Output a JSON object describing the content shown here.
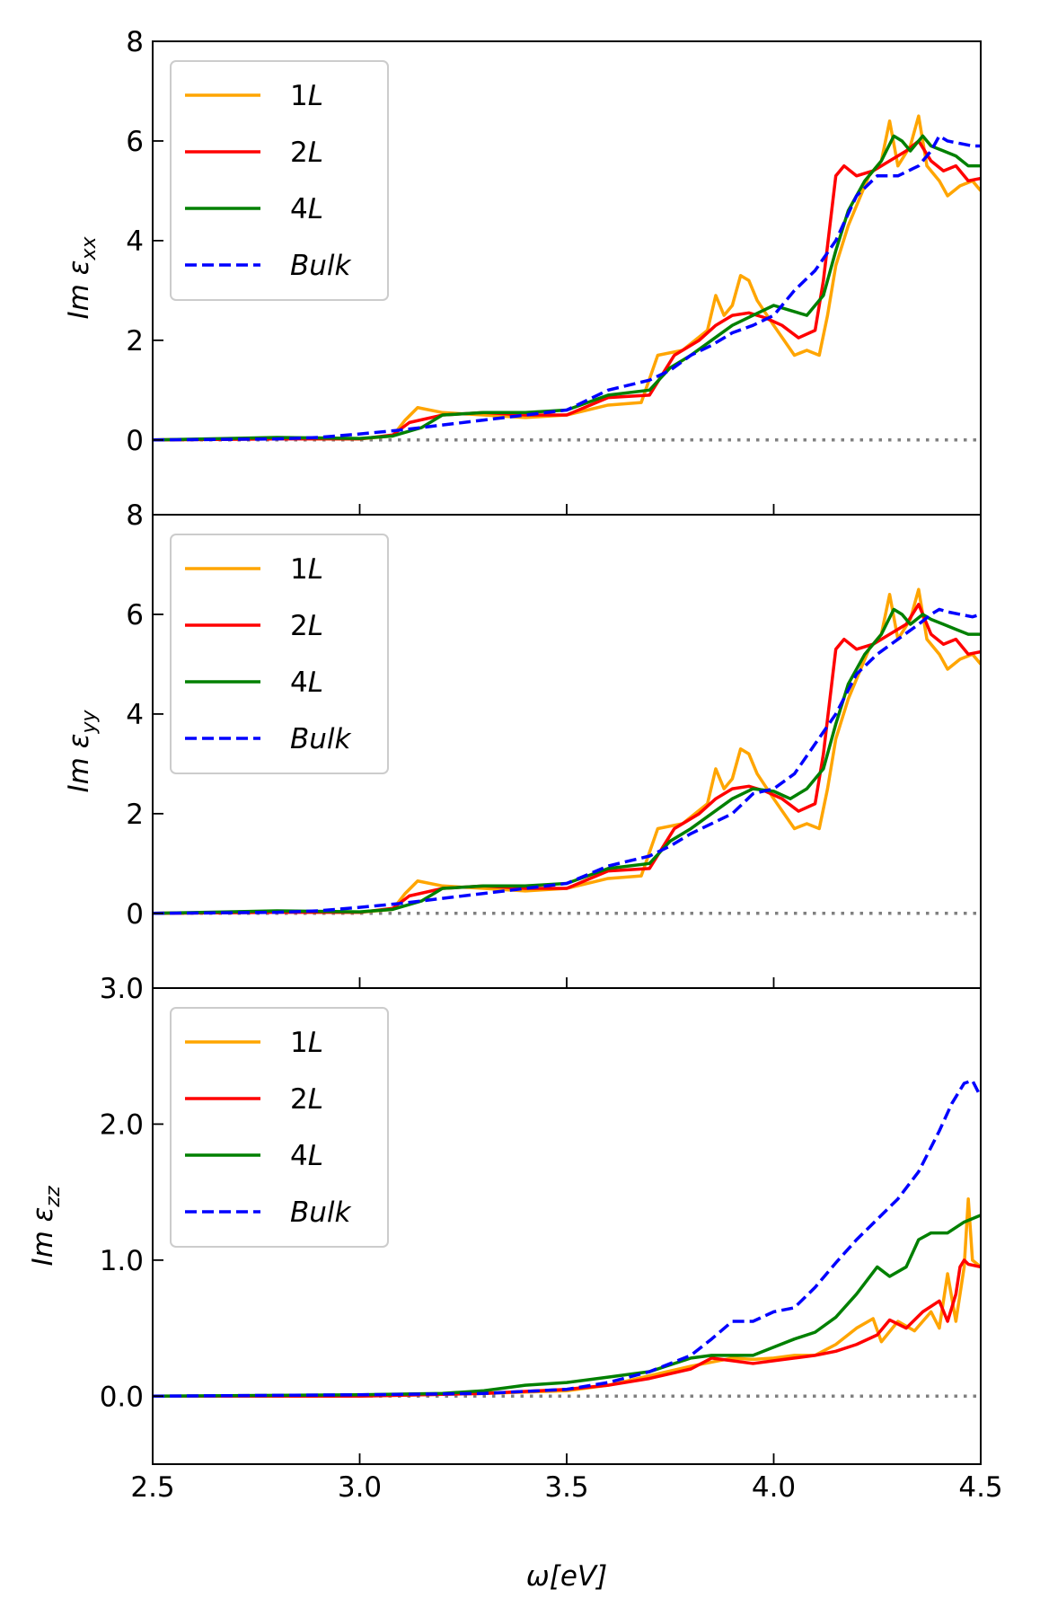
{
  "figure": {
    "xlabel": "ω[eV]"
  },
  "chart_data": [
    {
      "type": "line",
      "ylabel": "Im ε_xx",
      "ylabel_main": "Im ε",
      "ylabel_sub": "xx",
      "xlim": [
        2.5,
        4.5
      ],
      "ylim": [
        -1.5,
        8
      ],
      "yticks": [
        0,
        2,
        4,
        6,
        8
      ],
      "ytick_labels": [
        "0",
        "2",
        "4",
        "6",
        "8"
      ],
      "xticks": [
        3.0,
        3.5,
        4.0,
        4.5
      ],
      "xtick_labels_shown": false,
      "zero_line": {
        "y": 0,
        "color": "#808080",
        "style": "dotted"
      },
      "legend": {
        "position": "top-left",
        "entries": [
          {
            "num": "1",
            "italic": "L"
          },
          {
            "num": "2",
            "italic": "L"
          },
          {
            "num": "4",
            "italic": "L"
          },
          {
            "num": "",
            "italic": "Bulk"
          }
        ]
      },
      "series": [
        {
          "name": "1L",
          "color": "#FFA500",
          "dash": "solid",
          "x": [
            2.5,
            2.8,
            3.0,
            3.08,
            3.11,
            3.14,
            3.2,
            3.3,
            3.4,
            3.5,
            3.6,
            3.68,
            3.72,
            3.78,
            3.84,
            3.86,
            3.88,
            3.9,
            3.92,
            3.94,
            3.96,
            4.0,
            4.05,
            4.08,
            4.11,
            4.13,
            4.15,
            4.18,
            4.21,
            4.23,
            4.26,
            4.28,
            4.3,
            4.33,
            4.35,
            4.37,
            4.4,
            4.42,
            4.45,
            4.48,
            4.5
          ],
          "y": [
            0,
            0.03,
            0.02,
            0.08,
            0.4,
            0.65,
            0.55,
            0.5,
            0.45,
            0.5,
            0.7,
            0.75,
            1.7,
            1.8,
            2.2,
            2.9,
            2.5,
            2.7,
            3.3,
            3.2,
            2.8,
            2.3,
            1.7,
            1.8,
            1.7,
            2.5,
            3.5,
            4.3,
            4.9,
            5.3,
            5.6,
            6.4,
            5.5,
            5.9,
            6.5,
            5.5,
            5.2,
            4.9,
            5.1,
            5.2,
            5.0
          ]
        },
        {
          "name": "2L",
          "color": "#FF0000",
          "dash": "solid",
          "x": [
            2.5,
            2.8,
            3.0,
            3.08,
            3.12,
            3.2,
            3.3,
            3.4,
            3.5,
            3.6,
            3.7,
            3.76,
            3.82,
            3.86,
            3.9,
            3.94,
            3.98,
            4.02,
            4.06,
            4.1,
            4.12,
            4.15,
            4.17,
            4.2,
            4.24,
            4.28,
            4.32,
            4.35,
            4.38,
            4.41,
            4.44,
            4.47,
            4.5
          ],
          "y": [
            0,
            0.02,
            0.02,
            0.1,
            0.35,
            0.5,
            0.55,
            0.5,
            0.5,
            0.85,
            0.9,
            1.7,
            2.0,
            2.3,
            2.5,
            2.55,
            2.45,
            2.3,
            2.05,
            2.2,
            3.2,
            5.3,
            5.5,
            5.3,
            5.4,
            5.6,
            5.8,
            6.0,
            5.6,
            5.4,
            5.5,
            5.2,
            5.25
          ]
        },
        {
          "name": "4L",
          "color": "#008000",
          "dash": "solid",
          "x": [
            2.5,
            2.8,
            3.0,
            3.08,
            3.15,
            3.2,
            3.3,
            3.4,
            3.5,
            3.6,
            3.7,
            3.75,
            3.8,
            3.85,
            3.9,
            3.95,
            4.0,
            4.04,
            4.08,
            4.12,
            4.15,
            4.18,
            4.22,
            4.26,
            4.29,
            4.31,
            4.33,
            4.36,
            4.38,
            4.41,
            4.44,
            4.47,
            4.5
          ],
          "y": [
            0,
            0.05,
            0.03,
            0.08,
            0.25,
            0.5,
            0.55,
            0.55,
            0.6,
            0.9,
            1.0,
            1.45,
            1.7,
            2.0,
            2.3,
            2.5,
            2.7,
            2.6,
            2.5,
            2.9,
            3.8,
            4.6,
            5.2,
            5.6,
            6.1,
            6.0,
            5.8,
            6.1,
            5.9,
            5.8,
            5.7,
            5.5,
            5.5
          ]
        },
        {
          "name": "Bulk",
          "color": "#0000FF",
          "dash": "dashed",
          "x": [
            2.5,
            2.8,
            2.9,
            3.0,
            3.1,
            3.2,
            3.3,
            3.4,
            3.5,
            3.6,
            3.7,
            3.75,
            3.8,
            3.85,
            3.9,
            3.95,
            4.0,
            4.05,
            4.1,
            4.15,
            4.2,
            4.25,
            4.3,
            4.35,
            4.38,
            4.4,
            4.42,
            4.45,
            4.48,
            4.5
          ],
          "y": [
            0,
            0.02,
            0.05,
            0.12,
            0.2,
            0.3,
            0.4,
            0.5,
            0.6,
            1.0,
            1.2,
            1.4,
            1.7,
            1.9,
            2.15,
            2.3,
            2.5,
            3.0,
            3.4,
            4.0,
            4.9,
            5.3,
            5.3,
            5.5,
            5.8,
            6.1,
            6.0,
            5.95,
            5.9,
            5.9
          ]
        }
      ]
    },
    {
      "type": "line",
      "ylabel": "Im ε_yy",
      "ylabel_main": "Im ε",
      "ylabel_sub": "yy",
      "xlim": [
        2.5,
        4.5
      ],
      "ylim": [
        -1.5,
        8
      ],
      "yticks": [
        0,
        2,
        4,
        6,
        8
      ],
      "ytick_labels": [
        "0",
        "2",
        "4",
        "6",
        "8"
      ],
      "xticks": [
        3.0,
        3.5,
        4.0,
        4.5
      ],
      "xtick_labels_shown": false,
      "zero_line": {
        "y": 0,
        "color": "#808080",
        "style": "dotted"
      },
      "legend": {
        "position": "top-left",
        "entries": [
          {
            "num": "1",
            "italic": "L"
          },
          {
            "num": "2",
            "italic": "L"
          },
          {
            "num": "4",
            "italic": "L"
          },
          {
            "num": "",
            "italic": "Bulk"
          }
        ]
      },
      "series": [
        {
          "name": "1L",
          "color": "#FFA500",
          "dash": "solid",
          "x": [
            2.5,
            2.8,
            3.0,
            3.08,
            3.11,
            3.14,
            3.2,
            3.3,
            3.4,
            3.5,
            3.6,
            3.68,
            3.72,
            3.78,
            3.84,
            3.86,
            3.88,
            3.9,
            3.92,
            3.94,
            3.96,
            4.0,
            4.05,
            4.08,
            4.11,
            4.13,
            4.15,
            4.18,
            4.21,
            4.23,
            4.26,
            4.28,
            4.3,
            4.33,
            4.35,
            4.37,
            4.4,
            4.42,
            4.45,
            4.48,
            4.5
          ],
          "y": [
            0,
            0.03,
            0.02,
            0.08,
            0.4,
            0.65,
            0.55,
            0.5,
            0.45,
            0.5,
            0.7,
            0.75,
            1.7,
            1.8,
            2.2,
            2.9,
            2.5,
            2.7,
            3.3,
            3.2,
            2.8,
            2.3,
            1.7,
            1.8,
            1.7,
            2.5,
            3.5,
            4.3,
            4.9,
            5.3,
            5.6,
            6.4,
            5.5,
            5.9,
            6.5,
            5.5,
            5.2,
            4.9,
            5.1,
            5.2,
            5.0
          ]
        },
        {
          "name": "2L",
          "color": "#FF0000",
          "dash": "solid",
          "x": [
            2.5,
            2.8,
            3.0,
            3.08,
            3.12,
            3.2,
            3.3,
            3.4,
            3.5,
            3.6,
            3.7,
            3.76,
            3.82,
            3.86,
            3.9,
            3.94,
            3.98,
            4.02,
            4.06,
            4.1,
            4.12,
            4.15,
            4.17,
            4.2,
            4.24,
            4.28,
            4.32,
            4.35,
            4.38,
            4.41,
            4.44,
            4.47,
            4.5
          ],
          "y": [
            0,
            0.02,
            0.02,
            0.1,
            0.35,
            0.5,
            0.55,
            0.5,
            0.5,
            0.85,
            0.9,
            1.7,
            2.0,
            2.3,
            2.5,
            2.55,
            2.45,
            2.3,
            2.05,
            2.2,
            3.2,
            5.3,
            5.5,
            5.3,
            5.4,
            5.6,
            5.8,
            6.2,
            5.6,
            5.4,
            5.5,
            5.2,
            5.25
          ]
        },
        {
          "name": "4L",
          "color": "#008000",
          "dash": "solid",
          "x": [
            2.5,
            2.8,
            3.0,
            3.08,
            3.15,
            3.2,
            3.3,
            3.4,
            3.5,
            3.6,
            3.7,
            3.75,
            3.8,
            3.85,
            3.9,
            3.95,
            4.0,
            4.04,
            4.08,
            4.12,
            4.15,
            4.18,
            4.22,
            4.26,
            4.29,
            4.31,
            4.33,
            4.36,
            4.38,
            4.41,
            4.44,
            4.47,
            4.5
          ],
          "y": [
            0,
            0.05,
            0.03,
            0.08,
            0.25,
            0.5,
            0.55,
            0.55,
            0.6,
            0.9,
            1.0,
            1.45,
            1.7,
            2.0,
            2.3,
            2.5,
            2.45,
            2.3,
            2.5,
            2.9,
            3.8,
            4.6,
            5.2,
            5.6,
            6.1,
            6.0,
            5.8,
            6.0,
            5.9,
            5.8,
            5.7,
            5.6,
            5.6
          ]
        },
        {
          "name": "Bulk",
          "color": "#0000FF",
          "dash": "dashed",
          "x": [
            2.5,
            2.8,
            2.9,
            3.0,
            3.1,
            3.2,
            3.3,
            3.4,
            3.5,
            3.6,
            3.7,
            3.75,
            3.8,
            3.85,
            3.9,
            3.95,
            4.0,
            4.05,
            4.1,
            4.15,
            4.2,
            4.25,
            4.3,
            4.35,
            4.38,
            4.4,
            4.42,
            4.45,
            4.48,
            4.5
          ],
          "y": [
            0,
            0.02,
            0.05,
            0.12,
            0.2,
            0.3,
            0.4,
            0.5,
            0.6,
            0.95,
            1.15,
            1.35,
            1.6,
            1.8,
            2.0,
            2.4,
            2.5,
            2.8,
            3.4,
            4.0,
            4.8,
            5.2,
            5.5,
            5.8,
            6.0,
            6.1,
            6.05,
            6.0,
            5.95,
            6.0
          ]
        }
      ]
    },
    {
      "type": "line",
      "ylabel": "Im ε_zz",
      "ylabel_main": "Im ε",
      "ylabel_sub": "zz",
      "xlim": [
        2.5,
        4.5
      ],
      "ylim": [
        -0.5,
        3.0
      ],
      "yticks": [
        0.0,
        1.0,
        2.0,
        3.0
      ],
      "ytick_labels": [
        "0.0",
        "1.0",
        "2.0",
        "3.0"
      ],
      "xticks": [
        2.5,
        3.0,
        3.5,
        4.0,
        4.5
      ],
      "xtick_labels": [
        "2.5",
        "3.0",
        "3.5",
        "4.0",
        "4.5"
      ],
      "xtick_labels_shown": true,
      "zero_line": {
        "y": 0,
        "color": "#808080",
        "style": "dotted"
      },
      "legend": {
        "position": "top-left",
        "entries": [
          {
            "num": "1",
            "italic": "L"
          },
          {
            "num": "2",
            "italic": "L"
          },
          {
            "num": "4",
            "italic": "L"
          },
          {
            "num": "",
            "italic": "Bulk"
          }
        ]
      },
      "series": [
        {
          "name": "1L",
          "color": "#FFA500",
          "dash": "solid",
          "x": [
            2.5,
            3.0,
            3.3,
            3.5,
            3.6,
            3.7,
            3.8,
            3.85,
            3.9,
            3.95,
            4.0,
            4.05,
            4.1,
            4.15,
            4.2,
            4.24,
            4.26,
            4.3,
            4.34,
            4.38,
            4.4,
            4.42,
            4.44,
            4.46,
            4.47,
            4.48,
            4.5
          ],
          "y": [
            0,
            0.0,
            0.02,
            0.04,
            0.08,
            0.15,
            0.22,
            0.25,
            0.28,
            0.27,
            0.28,
            0.3,
            0.3,
            0.38,
            0.5,
            0.57,
            0.4,
            0.55,
            0.48,
            0.62,
            0.5,
            0.9,
            0.55,
            0.95,
            1.45,
            1.0,
            0.95
          ]
        },
        {
          "name": "2L",
          "color": "#FF0000",
          "dash": "solid",
          "x": [
            2.5,
            3.0,
            3.3,
            3.5,
            3.6,
            3.7,
            3.8,
            3.85,
            3.9,
            3.95,
            4.0,
            4.05,
            4.1,
            4.15,
            4.2,
            4.25,
            4.28,
            4.32,
            4.36,
            4.4,
            4.42,
            4.44,
            4.45,
            4.46,
            4.47,
            4.5
          ],
          "y": [
            0,
            0.0,
            0.02,
            0.05,
            0.08,
            0.13,
            0.2,
            0.28,
            0.26,
            0.24,
            0.26,
            0.28,
            0.3,
            0.33,
            0.38,
            0.45,
            0.56,
            0.5,
            0.62,
            0.7,
            0.55,
            0.75,
            0.95,
            1.0,
            0.97,
            0.95
          ]
        },
        {
          "name": "4L",
          "color": "#008000",
          "dash": "solid",
          "x": [
            2.5,
            3.0,
            3.2,
            3.3,
            3.4,
            3.5,
            3.6,
            3.7,
            3.8,
            3.85,
            3.9,
            3.95,
            4.0,
            4.05,
            4.1,
            4.15,
            4.2,
            4.25,
            4.28,
            4.32,
            4.35,
            4.38,
            4.42,
            4.46,
            4.5
          ],
          "y": [
            0,
            0.01,
            0.02,
            0.04,
            0.08,
            0.1,
            0.14,
            0.18,
            0.28,
            0.3,
            0.3,
            0.3,
            0.36,
            0.42,
            0.47,
            0.58,
            0.75,
            0.95,
            0.88,
            0.95,
            1.15,
            1.2,
            1.2,
            1.28,
            1.33
          ]
        },
        {
          "name": "Bulk",
          "color": "#0000FF",
          "dash": "dashed",
          "x": [
            2.5,
            3.0,
            3.3,
            3.5,
            3.6,
            3.7,
            3.8,
            3.85,
            3.9,
            3.95,
            4.0,
            4.05,
            4.1,
            4.15,
            4.2,
            4.25,
            4.3,
            4.35,
            4.4,
            4.43,
            4.46,
            4.48,
            4.5
          ],
          "y": [
            0,
            0.01,
            0.02,
            0.05,
            0.1,
            0.18,
            0.3,
            0.42,
            0.55,
            0.55,
            0.62,
            0.65,
            0.8,
            0.98,
            1.15,
            1.3,
            1.45,
            1.65,
            1.95,
            2.15,
            2.3,
            2.32,
            2.2
          ]
        }
      ]
    }
  ]
}
